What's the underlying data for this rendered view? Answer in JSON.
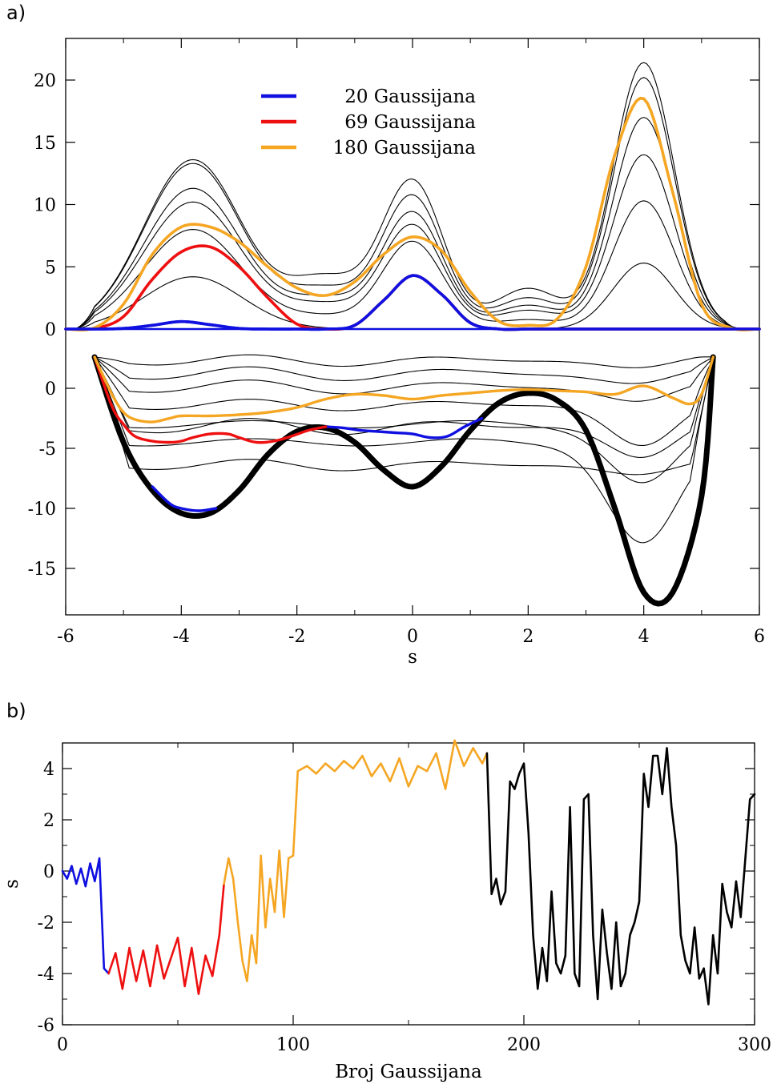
{
  "figure": {
    "panel_a_label": "a)",
    "panel_b_label": "b)"
  },
  "colors": {
    "blue": "#1010e0",
    "red": "#ee1010",
    "orange": "#f5a623",
    "black": "#000000"
  },
  "chart_data": [
    {
      "type": "line",
      "panel": "a",
      "xlabel": "s",
      "ylabel": "",
      "xlim": [
        -6,
        6
      ],
      "x_ticks": [
        "-6",
        "-4",
        "-2",
        "0",
        "2",
        "4",
        "6"
      ],
      "upper": {
        "ylim": [
          0,
          23
        ],
        "y_ticks": [
          "0",
          "5",
          "10",
          "15",
          "20"
        ],
        "series": [
          {
            "name": "20 Gaussijana",
            "color": "blue",
            "x": [
              -6,
              -5.5,
              -5,
              -4.5,
              -4,
              -3.5,
              -3,
              -2.5,
              -2,
              -1.5,
              -1,
              -0.5,
              0,
              0.5,
              1,
              1.5,
              2,
              2.5,
              3,
              3.5,
              4,
              4.5,
              5,
              5.5,
              6
            ],
            "y": [
              0,
              0,
              0.05,
              0.3,
              0.6,
              0.35,
              0.05,
              0,
              0,
              0,
              0.3,
              2.3,
              4.3,
              2.8,
              0.5,
              0,
              0,
              0,
              0,
              0,
              0,
              0,
              0,
              0,
              0
            ]
          },
          {
            "name": "69 Gaussijana",
            "color": "red",
            "x": [
              -6,
              -5.5,
              -5,
              -4.5,
              -4,
              -3.5,
              -3,
              -2.5,
              -2,
              -1.5,
              -1,
              -0.5,
              0,
              0.5,
              1,
              1.5,
              2,
              2.5,
              3,
              3.5,
              4,
              4.5,
              5,
              5.5,
              6
            ],
            "y": [
              0,
              0.05,
              1,
              4,
              6.2,
              6.6,
              5,
              2.5,
              0.4,
              0,
              0.3,
              2.3,
              4.3,
              2.8,
              0.5,
              0,
              0,
              0,
              0,
              0,
              0,
              0,
              0,
              0,
              0
            ]
          },
          {
            "name": "180 Gaussijana",
            "color": "orange",
            "x": [
              -6,
              -5.5,
              -5,
              -4.5,
              -4,
              -3.5,
              -3,
              -2.5,
              -2,
              -1.5,
              -1,
              -0.5,
              0,
              0.5,
              1,
              1.5,
              2,
              2.5,
              3,
              3.5,
              4,
              4.5,
              5,
              5.5,
              6
            ],
            "y": [
              0,
              0.1,
              2,
              6,
              8.2,
              8.2,
              7,
              5,
              3.3,
              2.7,
              3.8,
              6,
              7.4,
              6.3,
              3,
              0.6,
              0.3,
              0.8,
              5,
              14,
              18.5,
              11,
              2,
              0.1,
              0
            ]
          }
        ]
      },
      "lower": {
        "ylim": [
          -19,
          4.5
        ],
        "y_ticks": [
          "0",
          "-5",
          "-10",
          "-15"
        ],
        "series": [
          {
            "name": "",
            "color": "black",
            "x": [
              -5.5,
              -5,
              -4.5,
              -4,
              -3.5,
              -3,
              -2.5,
              -2,
              -1.5,
              -1,
              -0.5,
              0,
              0.5,
              1,
              1.5,
              2,
              2.5,
              3,
              3.5,
              4,
              4.5,
              5,
              5.2
            ],
            "y": [
              2.6,
              -4.5,
              -8.5,
              -10.4,
              -10.4,
              -8.5,
              -5.5,
              -3.6,
              -3.3,
              -4.5,
              -6.8,
              -8.2,
              -6.5,
              -3.5,
              -1.2,
              -0.4,
              -1,
              -3.5,
              -10,
              -17,
              -17,
              -9,
              2.6
            ]
          },
          {
            "name": "20 Gaussijana",
            "color": "blue",
            "x": [
              -4.5,
              -4.2,
              -4,
              -3.7,
              -3.4
            ],
            "y": [
              -8.2,
              -9.6,
              -10.0,
              -10.2,
              -10.0
            ]
          },
          {
            "name": "20 Gaussijana",
            "color": "blue",
            "x": [
              -1.5,
              -1.2,
              -0.9,
              -0.6,
              -0.3,
              0,
              0.3,
              0.6,
              0.9,
              1.2
            ],
            "y": [
              -3.2,
              -3.3,
              -3.5,
              -3.6,
              -3.7,
              -3.8,
              -4.1,
              -4.0,
              -3.2,
              -2.5
            ]
          },
          {
            "name": "69 Gaussijana",
            "color": "red",
            "x": [
              -5.5,
              -5.2,
              -5,
              -4.8,
              -4.5,
              -4.2,
              -4,
              -3.8,
              -3.5,
              -3.2,
              -3,
              -2.7,
              -2.4,
              -2.1,
              -1.8,
              -1.5
            ],
            "y": [
              2.6,
              -1.5,
              -3,
              -4,
              -4.4,
              -4.5,
              -4.4,
              -4.1,
              -3.8,
              -3.8,
              -4.1,
              -4.5,
              -4.4,
              -4.0,
              -3.5,
              -3.2
            ]
          },
          {
            "name": "180 Gaussijana",
            "color": "orange",
            "x": [
              -5.5,
              -5.2,
              -5,
              -4.8,
              -4.5,
              -4.2,
              -4,
              -3.5,
              -3,
              -2.5,
              -2,
              -1.5,
              -1,
              -0.5,
              0,
              0.5,
              1,
              1.5,
              2,
              2.5,
              3,
              3.5,
              4,
              4.5,
              4.8,
              5,
              5.2
            ],
            "y": [
              2.6,
              -0.5,
              -2,
              -2.6,
              -2.8,
              -2.5,
              -2.3,
              -2.3,
              -2.2,
              -2.0,
              -1.6,
              -0.9,
              -0.5,
              -0.6,
              -0.9,
              -0.6,
              -0.4,
              -0.2,
              -0.1,
              -0.2,
              -0.3,
              -0.5,
              0.2,
              -0.8,
              -1.3,
              -0.5,
              2.6
            ]
          }
        ]
      }
    },
    {
      "type": "line",
      "panel": "b",
      "xlabel": "Broj Gaussijana",
      "ylabel": "s",
      "xlim": [
        0,
        300
      ],
      "ylim": [
        -6,
        5
      ],
      "x_ticks": [
        "0",
        "100",
        "200",
        "300"
      ],
      "y_ticks": [
        "-6",
        "-4",
        "-2",
        "0",
        "2",
        "4"
      ],
      "series": [
        {
          "color": "blue",
          "x": [
            0,
            2,
            4,
            6,
            8,
            10,
            12,
            14,
            16,
            18,
            20
          ],
          "y": [
            0,
            -0.3,
            0.2,
            -0.5,
            0.1,
            -0.6,
            0.3,
            -0.4,
            0.5,
            -3.8,
            -4
          ]
        },
        {
          "color": "red",
          "x": [
            20,
            23,
            26,
            29,
            32,
            35,
            38,
            41,
            44,
            47,
            50,
            53,
            56,
            59,
            62,
            65,
            68,
            70
          ],
          "y": [
            -4,
            -3.2,
            -4.6,
            -3.0,
            -4.3,
            -3.1,
            -4.5,
            -2.9,
            -4.2,
            -3.4,
            -2.6,
            -4.5,
            -3.0,
            -4.8,
            -3.3,
            -4.1,
            -2.5,
            -0.5
          ]
        },
        {
          "color": "orange",
          "x": [
            70,
            72,
            74,
            76,
            78,
            80,
            82,
            84,
            86,
            88,
            90,
            92,
            94,
            96,
            98,
            100,
            102,
            106,
            110,
            114,
            118,
            122,
            126,
            130,
            134,
            138,
            142,
            146,
            150,
            154,
            158,
            162,
            166,
            170,
            174,
            178,
            182,
            184
          ],
          "y": [
            -0.5,
            0.5,
            -0.3,
            -2.0,
            -3.5,
            -4.3,
            -2.5,
            -3.6,
            0.6,
            -2.2,
            -0.3,
            -1.6,
            0.8,
            -1.8,
            0.5,
            0.6,
            3.9,
            4.1,
            3.8,
            4.2,
            3.9,
            4.3,
            4.0,
            4.5,
            3.7,
            4.2,
            3.5,
            4.4,
            3.3,
            4.1,
            3.9,
            4.6,
            3.2,
            5.1,
            4.1,
            4.8,
            4.2,
            4.6
          ]
        },
        {
          "color": "black",
          "x": [
            184,
            186,
            188,
            190,
            192,
            194,
            196,
            198,
            200,
            202,
            204,
            206,
            208,
            210,
            212,
            214,
            216,
            218,
            220,
            222,
            224,
            226,
            228,
            230,
            232,
            234,
            236,
            238,
            240,
            242,
            244,
            246,
            248,
            250,
            252,
            254,
            256,
            258,
            260,
            262,
            264,
            266,
            268,
            270,
            272,
            274,
            276,
            278,
            280,
            282,
            284,
            286,
            288,
            290,
            292,
            294,
            296,
            298,
            300
          ],
          "y": [
            4.6,
            -0.9,
            -0.3,
            -1.3,
            -0.8,
            3.5,
            3.2,
            3.8,
            4.2,
            1.5,
            -2.5,
            -4.6,
            -3.0,
            -4.3,
            -0.8,
            -3.6,
            -4.0,
            -3.3,
            2.5,
            -4.0,
            -4.5,
            2.8,
            3.0,
            -2.5,
            -5.0,
            -1.5,
            -3.2,
            -4.6,
            -2.0,
            -4.5,
            -4.0,
            -2.5,
            -2.0,
            -1.2,
            3.8,
            2.5,
            4.5,
            4.5,
            3.0,
            4.8,
            2.5,
            1.0,
            -2.5,
            -3.5,
            -4.0,
            -2.2,
            -4.2,
            -3.8,
            -5.2,
            -2.5,
            -4.0,
            -0.5,
            -1.6,
            -2.2,
            -0.4,
            -1.8,
            0.5,
            2.8,
            3.0
          ]
        }
      ]
    }
  ]
}
